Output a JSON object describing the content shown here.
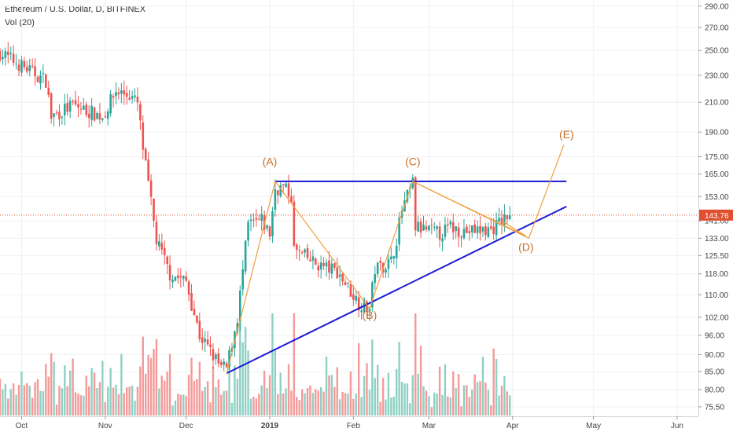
{
  "header": {
    "title": "Ethereum / U.S. Dollar, D, BITFINEX",
    "volume_label": "Vol (20)"
  },
  "colors": {
    "up": "#26a69a",
    "down": "#ef5350",
    "volume_up": "#8fd0c4",
    "volume_down": "#f49a99",
    "trendline": "#1a1ad4",
    "pattern": "#f0a040",
    "pattern_label": "#c8702a",
    "price_line": "#e0502e",
    "grid": "#eef0f3"
  },
  "chart_data": {
    "type": "candlestick",
    "title": "Ethereum / U.S. Dollar, D, BITFINEX",
    "y_axis": {
      "scale": "log",
      "range": [
        74.5,
        293
      ],
      "ticks": [
        290.0,
        270.0,
        250.0,
        230.0,
        210.0,
        190.0,
        175.0,
        165.0,
        153.0,
        141.0,
        133.0,
        125.5,
        118.0,
        110.0,
        102.0,
        96.0,
        90.0,
        85.0,
        80.0,
        75.5
      ]
    },
    "x_axis": {
      "range": [
        "2018-09-23",
        "2019-06-10"
      ],
      "ticks": [
        {
          "label": "Oct",
          "date": "2018-10-01",
          "bold": false
        },
        {
          "label": "Nov",
          "date": "2018-11-01",
          "bold": false
        },
        {
          "label": "Dec",
          "date": "2018-12-01",
          "bold": false
        },
        {
          "label": "2019",
          "date": "2019-01-01",
          "bold": true
        },
        {
          "label": "Feb",
          "date": "2019-02-01",
          "bold": false
        },
        {
          "label": "Mar",
          "date": "2019-03-01",
          "bold": false
        },
        {
          "label": "Apr",
          "date": "2019-04-01",
          "bold": false
        },
        {
          "label": "May",
          "date": "2019-05-01",
          "bold": false
        },
        {
          "label": "Jun",
          "date": "2019-06-01",
          "bold": false
        }
      ]
    },
    "last_price": 143.76,
    "anchors": [
      {
        "date": "2018-09-23",
        "close": 248
      },
      {
        "date": "2018-10-10",
        "close": 226
      },
      {
        "date": "2018-10-12",
        "close": 200
      },
      {
        "date": "2018-10-20",
        "close": 208
      },
      {
        "date": "2018-10-31",
        "close": 200
      },
      {
        "date": "2018-11-05",
        "close": 218
      },
      {
        "date": "2018-11-10",
        "close": 215
      },
      {
        "date": "2018-11-13",
        "close": 209
      },
      {
        "date": "2018-11-15",
        "close": 180
      },
      {
        "date": "2018-11-20",
        "close": 132
      },
      {
        "date": "2018-11-25",
        "close": 118
      },
      {
        "date": "2018-12-01",
        "close": 115
      },
      {
        "date": "2018-12-06",
        "close": 96
      },
      {
        "date": "2018-12-14",
        "close": 86
      },
      {
        "date": "2018-12-16",
        "close": 86
      },
      {
        "date": "2018-12-20",
        "close": 102
      },
      {
        "date": "2018-12-24",
        "close": 139
      },
      {
        "date": "2018-12-29",
        "close": 141
      },
      {
        "date": "2019-01-01",
        "close": 135
      },
      {
        "date": "2019-01-03",
        "close": 157
      },
      {
        "date": "2019-01-06",
        "close": 158
      },
      {
        "date": "2019-01-09",
        "close": 153
      },
      {
        "date": "2019-01-10",
        "close": 128
      },
      {
        "date": "2019-01-18",
        "close": 122
      },
      {
        "date": "2019-01-26",
        "close": 119
      },
      {
        "date": "2019-02-03",
        "close": 107
      },
      {
        "date": "2019-02-07",
        "close": 105
      },
      {
        "date": "2019-02-09",
        "close": 120
      },
      {
        "date": "2019-02-15",
        "close": 123
      },
      {
        "date": "2019-02-17",
        "close": 133
      },
      {
        "date": "2019-02-19",
        "close": 146
      },
      {
        "date": "2019-02-23",
        "close": 160
      },
      {
        "date": "2019-02-24",
        "close": 138
      },
      {
        "date": "2019-03-05",
        "close": 135
      },
      {
        "date": "2019-03-09",
        "close": 138
      },
      {
        "date": "2019-03-15",
        "close": 136
      },
      {
        "date": "2019-03-24",
        "close": 137
      },
      {
        "date": "2019-03-29",
        "close": 142
      },
      {
        "date": "2019-03-31",
        "close": 143.76
      }
    ],
    "volume_note": "Vol (20) histogram bars, colored by candle direction",
    "annotations": {
      "horizontal_resistance": {
        "from": "2019-01-03",
        "to": "2019-04-21",
        "price": 161
      },
      "rising_support": {
        "from": "2018-12-16",
        "from_price": 84.5,
        "to": "2019-04-21",
        "to_price": 148
      },
      "wave_path": [
        {
          "date": "2018-12-16",
          "price": 84.5
        },
        {
          "date": "2019-01-03",
          "price": 161
        },
        {
          "date": "2019-02-07",
          "price": 105
        },
        {
          "date": "2019-02-23",
          "price": 161
        },
        {
          "date": "2019-04-07",
          "price": 133
        },
        {
          "date": "2019-04-20",
          "price": 182
        }
      ],
      "wave_labels": [
        {
          "text": "(A)",
          "date": "2019-01-01",
          "price": 170
        },
        {
          "text": "(B)",
          "date": "2019-02-07",
          "price": 101.5
        },
        {
          "text": "(C)",
          "date": "2019-02-23",
          "price": 170
        },
        {
          "text": "(D)",
          "date": "2019-04-06",
          "price": 127.5
        },
        {
          "text": "(E)",
          "date": "2019-04-21",
          "price": 186
        }
      ],
      "triangle_upper": {
        "from": "2019-02-23",
        "from_price": 161,
        "to": "2019-04-06",
        "to_price": 134
      },
      "triangle_lower": {
        "from": "2019-03-28",
        "from_price": 141,
        "to": "2019-04-06",
        "to_price": 134
      }
    }
  }
}
